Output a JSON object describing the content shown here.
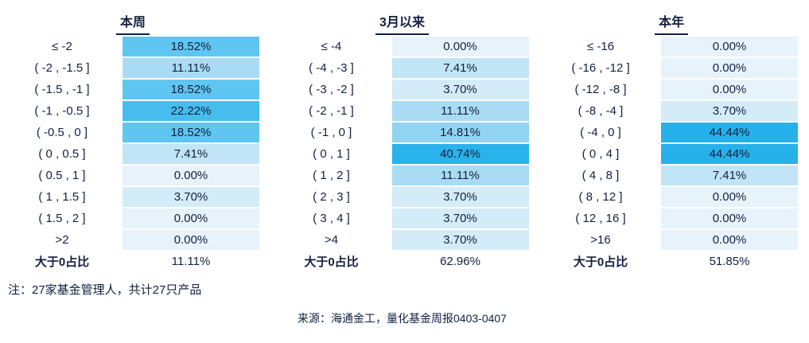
{
  "chart_data": {
    "type": "heatmap",
    "unit": "%",
    "groups": [
      {
        "header": "本周",
        "bins": [
          "≤ -2",
          "( -2 , -1.5 ]",
          "( -1.5 , -1 ]",
          "( -1 , -0.5 ]",
          "( -0.5 , 0 ]",
          "( 0 , 0.5 ]",
          "( 0.5 , 1 ]",
          "( 1 , 1.5 ]",
          "( 1.5 , 2 ]",
          ">2"
        ],
        "values_pct": [
          18.52,
          11.11,
          18.52,
          22.22,
          18.52,
          7.41,
          0,
          3.7,
          0,
          0
        ],
        "summary_label": "大于0占比",
        "summary_value_pct": 11.11
      },
      {
        "header": "3月以来",
        "bins": [
          "≤ -4",
          "( -4 , -3 ]",
          "( -3 , -2 ]",
          "( -2 , -1 ]",
          "( -1 , 0 ]",
          "( 0 , 1 ]",
          "( 1 , 2 ]",
          "( 2 , 3 ]",
          "( 3 , 4 ]",
          ">4"
        ],
        "values_pct": [
          0,
          7.41,
          3.7,
          11.11,
          14.81,
          40.74,
          11.11,
          3.7,
          3.7,
          3.7
        ],
        "summary_label": "大于0占比",
        "summary_value_pct": 62.96
      },
      {
        "header": "本年",
        "bins": [
          "≤ -16",
          "( -16 , -12 ]",
          "( -12 , -8 ]",
          "( -8 , -4 ]",
          "( -4 , 0 ]",
          "( 0 , 4 ]",
          "( 4 , 8 ]",
          "( 8 , 12 ]",
          "( 12 , 16 ]",
          ">16"
        ],
        "values_pct": [
          0,
          0,
          0,
          3.7,
          44.44,
          44.44,
          7.41,
          0,
          0,
          0
        ],
        "summary_label": "大于0占比",
        "summary_value_pct": 51.85
      }
    ],
    "color_scale": {
      "value_colors": {
        "0": "#e7f3fb",
        "3.7": "#d4ebf8",
        "7.41": "#c1e4f6",
        "11.11": "#a9dcf4",
        "14.81": "#92d3f1",
        "18.52": "#5ec6f0",
        "22.22": "#47bdee",
        "40.74": "#2ab2ea",
        "44.44": "#27b1ea"
      }
    }
  },
  "note": "注：27家基金管理人，共计27只产品",
  "source": "来源：海通金工，量化基金周报0403-0407",
  "colors": {
    "text": "#13203f",
    "header_underline": "#13203f",
    "background": "#ffffff"
  }
}
